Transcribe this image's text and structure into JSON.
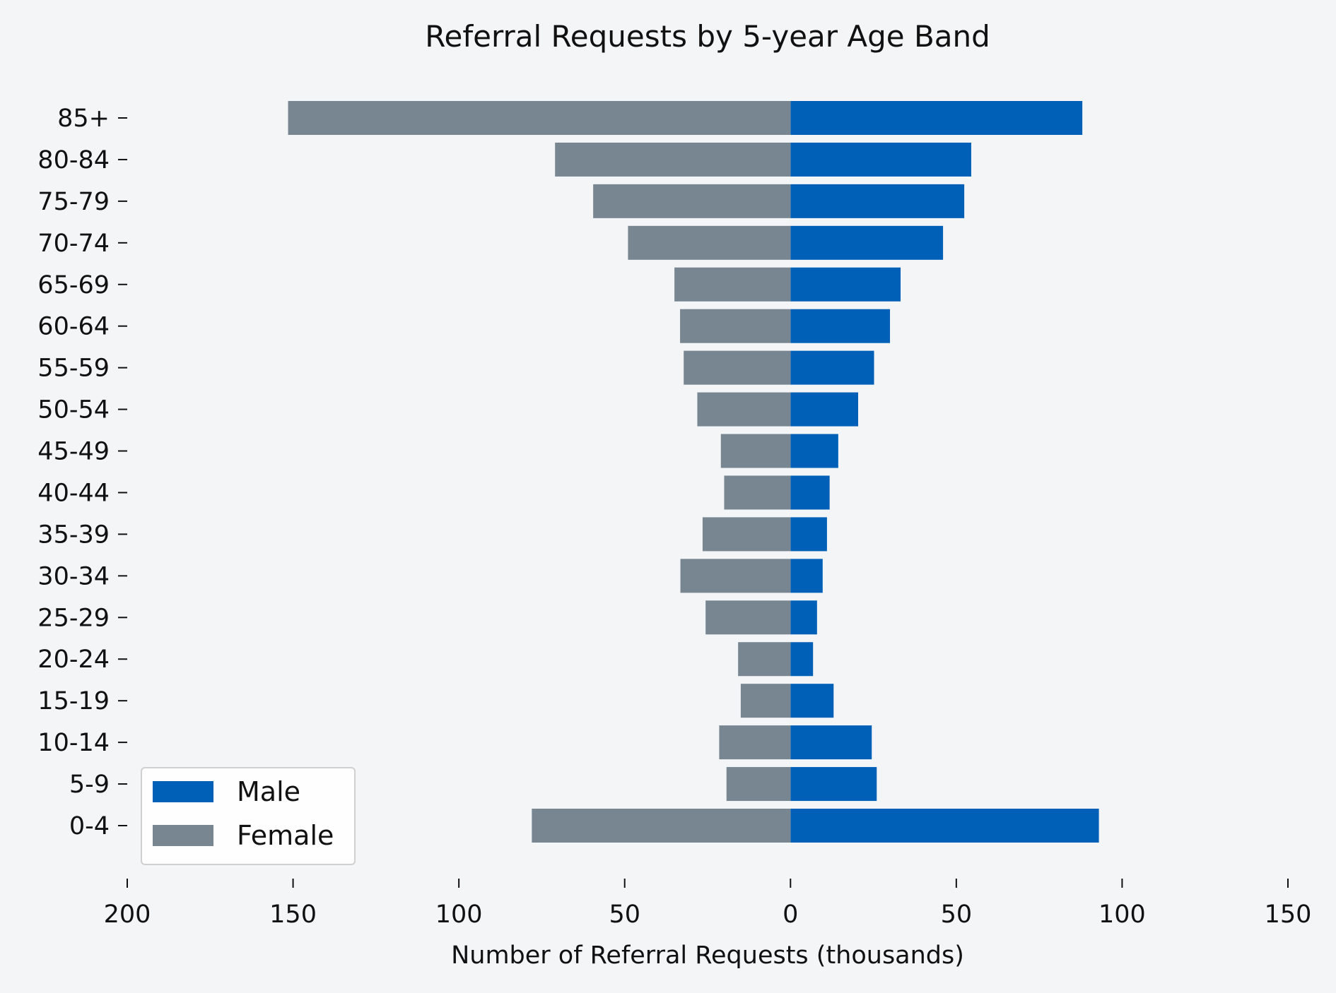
{
  "chart_data": {
    "type": "bar",
    "orientation": "horizontal",
    "layout": "population-pyramid",
    "title": "Referral Requests by 5-year Age Band",
    "xlabel": "Number of Referral Requests (thousands)",
    "ylabel": "",
    "categories": [
      "0-4",
      "5-9",
      "10-14",
      "15-19",
      "20-24",
      "25-29",
      "30-34",
      "35-39",
      "40-44",
      "45-49",
      "50-54",
      "55-59",
      "60-64",
      "65-69",
      "70-74",
      "75-79",
      "80-84",
      "85+"
    ],
    "series": [
      {
        "name": "Male",
        "color": "#0060b8",
        "side": "right",
        "values": [
          93,
          26,
          24.5,
          13,
          6.8,
          8,
          9.7,
          11,
          11.8,
          14.4,
          20.4,
          25.2,
          30,
          33.2,
          46,
          52.4,
          54.5,
          88
        ]
      },
      {
        "name": "Female",
        "color": "#778691",
        "side": "left",
        "values": [
          78,
          19.3,
          21.5,
          15,
          15.8,
          25.6,
          33.2,
          26.5,
          20,
          21,
          28.1,
          32.2,
          33.3,
          35,
          49,
          59.5,
          71,
          151.5
        ]
      }
    ],
    "xlim": [
      -200,
      150
    ],
    "xticks": [
      -200,
      -150,
      -100,
      -50,
      0,
      50,
      100,
      150
    ],
    "xtick_labels": [
      "200",
      "150",
      "100",
      "50",
      "0",
      "50",
      "100",
      "150"
    ],
    "legend": {
      "placement": "lower-left",
      "entries": [
        "Male",
        "Female"
      ]
    },
    "grid": false,
    "background": "#f4f5f7"
  }
}
